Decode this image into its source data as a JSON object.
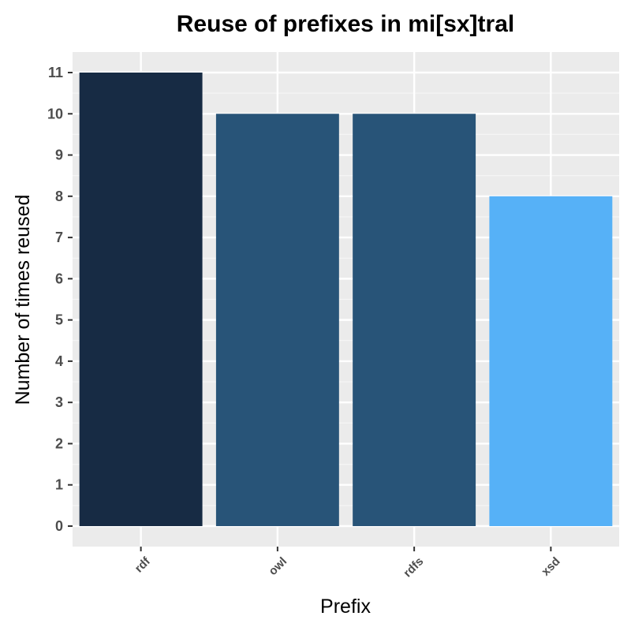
{
  "chart_data": {
    "type": "bar",
    "title": "Reuse of prefixes in mi[sx]tral",
    "xlabel": "Prefix",
    "ylabel": "Number of times reused",
    "categories": [
      "rdf",
      "owl",
      "rdfs",
      "xsd"
    ],
    "values": [
      11,
      10,
      10,
      8
    ],
    "yticks": [
      0,
      1,
      2,
      3,
      4,
      5,
      6,
      7,
      8,
      9,
      10,
      11
    ],
    "ylim": [
      0,
      11
    ],
    "grid": true,
    "legend": "none",
    "colors": {
      "panel_background": "#EBEBEB",
      "grid_major": "#FFFFFF",
      "grid_minor": "#F5F5F5",
      "tick_text": "#4D4D4D",
      "bar_colors": [
        "#172B44",
        "#285478",
        "#285478",
        "#56B1F7"
      ]
    }
  }
}
